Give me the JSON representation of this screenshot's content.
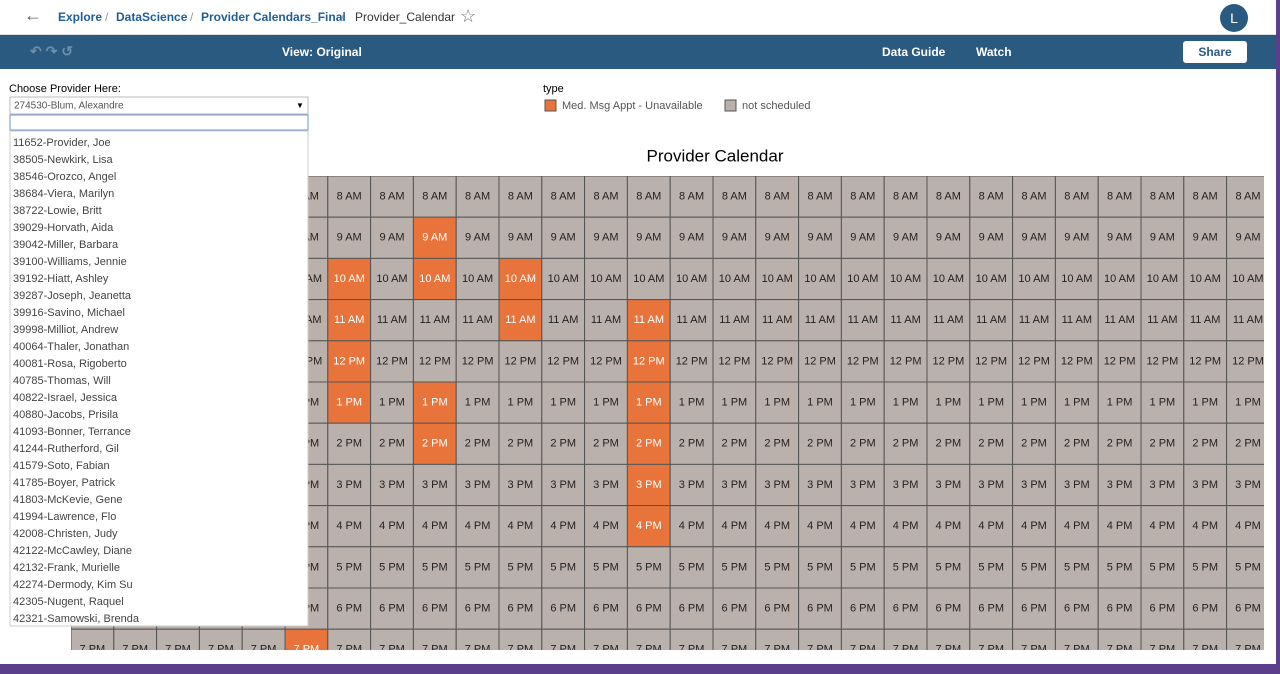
{
  "breadcrumb": [
    "Explore",
    "DataScience",
    "Provider Calendars_Final",
    "Provider_Calendar"
  ],
  "user_initial": "L",
  "toolbar": {
    "view": "View: Original",
    "data_guide": "Data Guide",
    "watch": "Watch",
    "share": "Share"
  },
  "filter": {
    "label": "Choose Provider Here:",
    "selected": "274530-Blum, Alexandre",
    "options": [
      "11652-Provider, Joe",
      "38505-Newkirk, Lisa",
      "38546-Orozco, Angel",
      "38684-Viera, Marilyn",
      "38722-Lowie, Britt",
      "39029-Horvath, Aida",
      "39042-Miller, Barbara",
      "39100-Williams, Jennie",
      "39192-Hiatt, Ashley",
      "39287-Joseph, Jeanetta",
      "39916-Savino, Michael",
      "39998-Milliot, Andrew",
      "40064-Thaler, Jonathan",
      "40081-Rosa, Rigoberto",
      "40785-Thomas, Will",
      "40822-Israel, Jessica",
      "40880-Jacobs, Prisila",
      "41093-Bonner, Terrance",
      "41244-Rutherford, Gil",
      "41579-Soto, Fabian",
      "41785-Boyer, Patrick",
      "41803-McKevie, Gene",
      "41994-Lawrence, Flo",
      "42008-Christen, Judy",
      "42122-McCawley, Diane",
      "42132-Frank, Murielle",
      "42274-Dermody, Kim Su",
      "42305-Nugent, Raquel",
      "42321-Samowski, Brenda"
    ]
  },
  "legend": {
    "title": "type",
    "entries": [
      {
        "name": "Med. Msg Appt - Unavailable",
        "color": "#e8743b"
      },
      {
        "name": "not scheduled",
        "color": "#bab0ac"
      }
    ]
  },
  "calendar": {
    "title": "Provider Calendar",
    "hours": [
      "8 AM",
      "9 AM",
      "10 AM",
      "11 AM",
      "12 PM",
      "1 PM",
      "2 PM",
      "3 PM",
      "4 PM",
      "5 PM",
      "6 PM",
      "7 PM"
    ],
    "columns": [
      {
        "unavailable": []
      },
      {
        "unavailable": []
      },
      {
        "unavailable": []
      },
      {
        "unavailable": []
      },
      {
        "unavailable": []
      },
      {
        "unavailable": [
          "7 PM"
        ]
      },
      {
        "unavailable": [
          "10 AM",
          "11 AM",
          "12 PM",
          "1 PM"
        ]
      },
      {
        "unavailable": []
      },
      {
        "unavailable": [
          "9 AM",
          "10 AM",
          "1 PM",
          "2 PM"
        ]
      },
      {
        "unavailable": []
      },
      {
        "unavailable": [
          "10 AM",
          "11 AM"
        ]
      },
      {
        "unavailable": []
      },
      {
        "unavailable": []
      },
      {
        "unavailable": [
          "11 AM",
          "12 PM",
          "1 PM",
          "2 PM",
          "3 PM",
          "4 PM"
        ]
      },
      {
        "unavailable": []
      },
      {
        "unavailable": []
      },
      {
        "unavailable": []
      },
      {
        "unavailable": []
      },
      {
        "unavailable": []
      },
      {
        "unavailable": []
      },
      {
        "unavailable": []
      },
      {
        "unavailable": []
      },
      {
        "unavailable": []
      },
      {
        "unavailable": []
      },
      {
        "unavailable": []
      },
      {
        "unavailable": []
      },
      {
        "unavailable": []
      },
      {
        "unavailable": []
      }
    ]
  }
}
